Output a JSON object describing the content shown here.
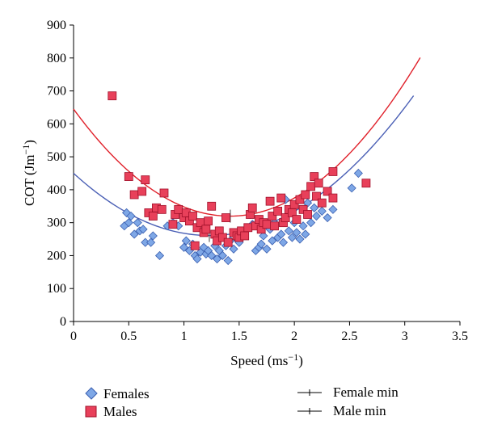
{
  "chart_data": {
    "type": "scatter",
    "xlabel_main": "Speed (ms",
    "xlabel_sup": "−1",
    "xlabel_close": ")",
    "ylabel_main": "COT (Jm",
    "ylabel_sup": "−1",
    "ylabel_close": ")",
    "xlim": [
      0,
      3.5
    ],
    "ylim": [
      0,
      900
    ],
    "xticks": [
      "0",
      "0.5",
      "1",
      "1.5",
      "2",
      "2.5",
      "3",
      "3.5"
    ],
    "yticks": [
      "0",
      "100",
      "200",
      "300",
      "400",
      "500",
      "600",
      "700",
      "800",
      "900"
    ],
    "grid": false,
    "legend_position": "bottom",
    "colors": {
      "females_fill": "#7ea7e6",
      "females_stroke": "#3a5fb0",
      "females_curve": "#4a5fb5",
      "males_fill": "#e8405a",
      "males_stroke": "#a0102a",
      "males_curve": "#e0202a"
    },
    "series": [
      {
        "name": "Females",
        "marker": "diamond",
        "points": [
          [
            0.46,
            290
          ],
          [
            0.48,
            330
          ],
          [
            0.5,
            300
          ],
          [
            0.52,
            320
          ],
          [
            0.55,
            265
          ],
          [
            0.58,
            300
          ],
          [
            0.6,
            275
          ],
          [
            0.63,
            280
          ],
          [
            0.65,
            240
          ],
          [
            0.7,
            240
          ],
          [
            0.72,
            260
          ],
          [
            0.78,
            200
          ],
          [
            0.85,
            290
          ],
          [
            0.9,
            300
          ],
          [
            0.95,
            290
          ],
          [
            1.0,
            225
          ],
          [
            1.02,
            245
          ],
          [
            1.05,
            215
          ],
          [
            1.08,
            235
          ],
          [
            1.1,
            200
          ],
          [
            1.12,
            190
          ],
          [
            1.15,
            210
          ],
          [
            1.18,
            225
          ],
          [
            1.2,
            205
          ],
          [
            1.22,
            215
          ],
          [
            1.25,
            200
          ],
          [
            1.28,
            230
          ],
          [
            1.3,
            190
          ],
          [
            1.32,
            215
          ],
          [
            1.35,
            200
          ],
          [
            1.38,
            230
          ],
          [
            1.4,
            185
          ],
          [
            1.42,
            245
          ],
          [
            1.45,
            220
          ],
          [
            1.48,
            250
          ],
          [
            1.5,
            240
          ],
          [
            1.55,
            265
          ],
          [
            1.6,
            325
          ],
          [
            1.62,
            295
          ],
          [
            1.65,
            215
          ],
          [
            1.68,
            225
          ],
          [
            1.7,
            235
          ],
          [
            1.72,
            260
          ],
          [
            1.75,
            220
          ],
          [
            1.78,
            280
          ],
          [
            1.8,
            245
          ],
          [
            1.82,
            300
          ],
          [
            1.85,
            255
          ],
          [
            1.88,
            265
          ],
          [
            1.9,
            240
          ],
          [
            1.92,
            370
          ],
          [
            1.95,
            275
          ],
          [
            1.98,
            255
          ],
          [
            2.0,
            300
          ],
          [
            2.02,
            270
          ],
          [
            2.05,
            250
          ],
          [
            2.08,
            290
          ],
          [
            2.1,
            265
          ],
          [
            2.12,
            360
          ],
          [
            2.15,
            300
          ],
          [
            2.18,
            345
          ],
          [
            2.2,
            320
          ],
          [
            2.25,
            335
          ],
          [
            2.3,
            315
          ],
          [
            2.35,
            340
          ],
          [
            2.52,
            405
          ],
          [
            2.58,
            450
          ]
        ]
      },
      {
        "name": "Males",
        "marker": "square",
        "points": [
          [
            0.35,
            685
          ],
          [
            0.5,
            440
          ],
          [
            0.55,
            385
          ],
          [
            0.62,
            395
          ],
          [
            0.65,
            430
          ],
          [
            0.68,
            330
          ],
          [
            0.72,
            320
          ],
          [
            0.75,
            345
          ],
          [
            0.8,
            340
          ],
          [
            0.82,
            390
          ],
          [
            0.9,
            295
          ],
          [
            0.92,
            325
          ],
          [
            0.95,
            340
          ],
          [
            1.0,
            315
          ],
          [
            1.02,
            330
          ],
          [
            1.05,
            305
          ],
          [
            1.08,
            320
          ],
          [
            1.1,
            230
          ],
          [
            1.12,
            285
          ],
          [
            1.15,
            300
          ],
          [
            1.18,
            270
          ],
          [
            1.2,
            280
          ],
          [
            1.22,
            305
          ],
          [
            1.25,
            350
          ],
          [
            1.28,
            265
          ],
          [
            1.3,
            245
          ],
          [
            1.32,
            275
          ],
          [
            1.35,
            255
          ],
          [
            1.38,
            315
          ],
          [
            1.4,
            240
          ],
          [
            1.45,
            270
          ],
          [
            1.48,
            260
          ],
          [
            1.5,
            255
          ],
          [
            1.52,
            275
          ],
          [
            1.55,
            260
          ],
          [
            1.58,
            285
          ],
          [
            1.6,
            325
          ],
          [
            1.62,
            345
          ],
          [
            1.65,
            290
          ],
          [
            1.68,
            310
          ],
          [
            1.7,
            280
          ],
          [
            1.72,
            300
          ],
          [
            1.75,
            295
          ],
          [
            1.78,
            365
          ],
          [
            1.8,
            320
          ],
          [
            1.82,
            290
          ],
          [
            1.85,
            335
          ],
          [
            1.88,
            375
          ],
          [
            1.9,
            300
          ],
          [
            1.92,
            315
          ],
          [
            1.95,
            340
          ],
          [
            1.98,
            330
          ],
          [
            2.0,
            355
          ],
          [
            2.02,
            310
          ],
          [
            2.05,
            370
          ],
          [
            2.08,
            340
          ],
          [
            2.1,
            385
          ],
          [
            2.12,
            325
          ],
          [
            2.15,
            410
          ],
          [
            2.18,
            440
          ],
          [
            2.2,
            380
          ],
          [
            2.22,
            420
          ],
          [
            2.25,
            360
          ],
          [
            2.3,
            395
          ],
          [
            2.35,
            455
          ],
          [
            2.35,
            375
          ],
          [
            2.65,
            420
          ]
        ]
      }
    ],
    "fits": [
      {
        "name": "Female min",
        "color_key": "females_curve",
        "coef": [
          450,
          -306.7,
          124.4
        ],
        "x_range": [
          0,
          3.08
        ],
        "min_x": 1.23
      },
      {
        "name": "Male min",
        "color_key": "males_curve",
        "coef": [
          645,
          -459,
          162
        ],
        "x_range": [
          0,
          3.14
        ],
        "min_x": 1.42
      }
    ]
  }
}
